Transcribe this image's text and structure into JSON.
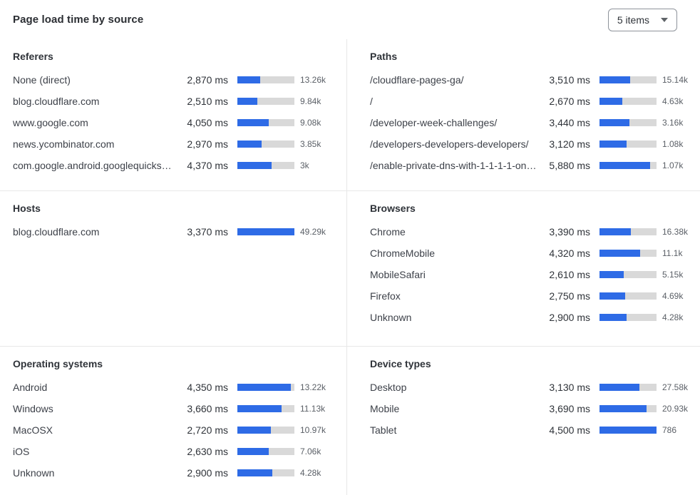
{
  "header": {
    "title": "Page load time by source",
    "items_select": {
      "value": "5 items"
    }
  },
  "colors": {
    "bar_fill": "#2e6be6",
    "bar_track": "#d9d9d9",
    "divider": "#e8e8e8"
  },
  "panels": [
    {
      "title": "Referers",
      "rows": [
        {
          "label": "None (direct)",
          "ms": "2,870 ms",
          "count": "13.26k",
          "bar_pct": 40
        },
        {
          "label": "blog.cloudflare.com",
          "ms": "2,510 ms",
          "count": "9.84k",
          "bar_pct": 35
        },
        {
          "label": "www.google.com",
          "ms": "4,050 ms",
          "count": "9.08k",
          "bar_pct": 55
        },
        {
          "label": "news.ycombinator.com",
          "ms": "2,970 ms",
          "count": "3.85k",
          "bar_pct": 42
        },
        {
          "label": "com.google.android.googlequicksearc…",
          "ms": "4,370 ms",
          "count": "3k",
          "bar_pct": 60
        }
      ]
    },
    {
      "title": "Paths",
      "rows": [
        {
          "label": "/cloudflare-pages-ga/",
          "ms": "3,510 ms",
          "count": "15.14k",
          "bar_pct": 54
        },
        {
          "label": "/",
          "ms": "2,670 ms",
          "count": "4.63k",
          "bar_pct": 40
        },
        {
          "label": "/developer-week-challenges/",
          "ms": "3,440 ms",
          "count": "3.16k",
          "bar_pct": 52
        },
        {
          "label": "/developers-developers-developers/",
          "ms": "3,120 ms",
          "count": "1.08k",
          "bar_pct": 47
        },
        {
          "label": "/enable-private-dns-with-1-1-1-1-on-…",
          "ms": "5,880 ms",
          "count": "1.07k",
          "bar_pct": 89
        }
      ]
    },
    {
      "title": "Hosts",
      "rows": [
        {
          "label": "blog.cloudflare.com",
          "ms": "3,370 ms",
          "count": "49.29k",
          "bar_pct": 100
        }
      ]
    },
    {
      "title": "Browsers",
      "rows": [
        {
          "label": "Chrome",
          "ms": "3,390 ms",
          "count": "16.38k",
          "bar_pct": 55
        },
        {
          "label": "ChromeMobile",
          "ms": "4,320 ms",
          "count": "11.1k",
          "bar_pct": 71
        },
        {
          "label": "MobileSafari",
          "ms": "2,610 ms",
          "count": "5.15k",
          "bar_pct": 42
        },
        {
          "label": "Firefox",
          "ms": "2,750 ms",
          "count": "4.69k",
          "bar_pct": 45
        },
        {
          "label": "Unknown",
          "ms": "2,900 ms",
          "count": "4.28k",
          "bar_pct": 48
        }
      ]
    },
    {
      "title": "Operating systems",
      "rows": [
        {
          "label": "Android",
          "ms": "4,350 ms",
          "count": "13.22k",
          "bar_pct": 94
        },
        {
          "label": "Windows",
          "ms": "3,660 ms",
          "count": "11.13k",
          "bar_pct": 78
        },
        {
          "label": "MacOSX",
          "ms": "2,720 ms",
          "count": "10.97k",
          "bar_pct": 59
        },
        {
          "label": "iOS",
          "ms": "2,630 ms",
          "count": "7.06k",
          "bar_pct": 55
        },
        {
          "label": "Unknown",
          "ms": "2,900 ms",
          "count": "4.28k",
          "bar_pct": 61
        }
      ]
    },
    {
      "title": "Device types",
      "rows": [
        {
          "label": "Desktop",
          "ms": "3,130 ms",
          "count": "27.58k",
          "bar_pct": 70
        },
        {
          "label": "Mobile",
          "ms": "3,690 ms",
          "count": "20.93k",
          "bar_pct": 83
        },
        {
          "label": "Tablet",
          "ms": "4,500 ms",
          "count": "786",
          "bar_pct": 100
        }
      ]
    }
  ]
}
